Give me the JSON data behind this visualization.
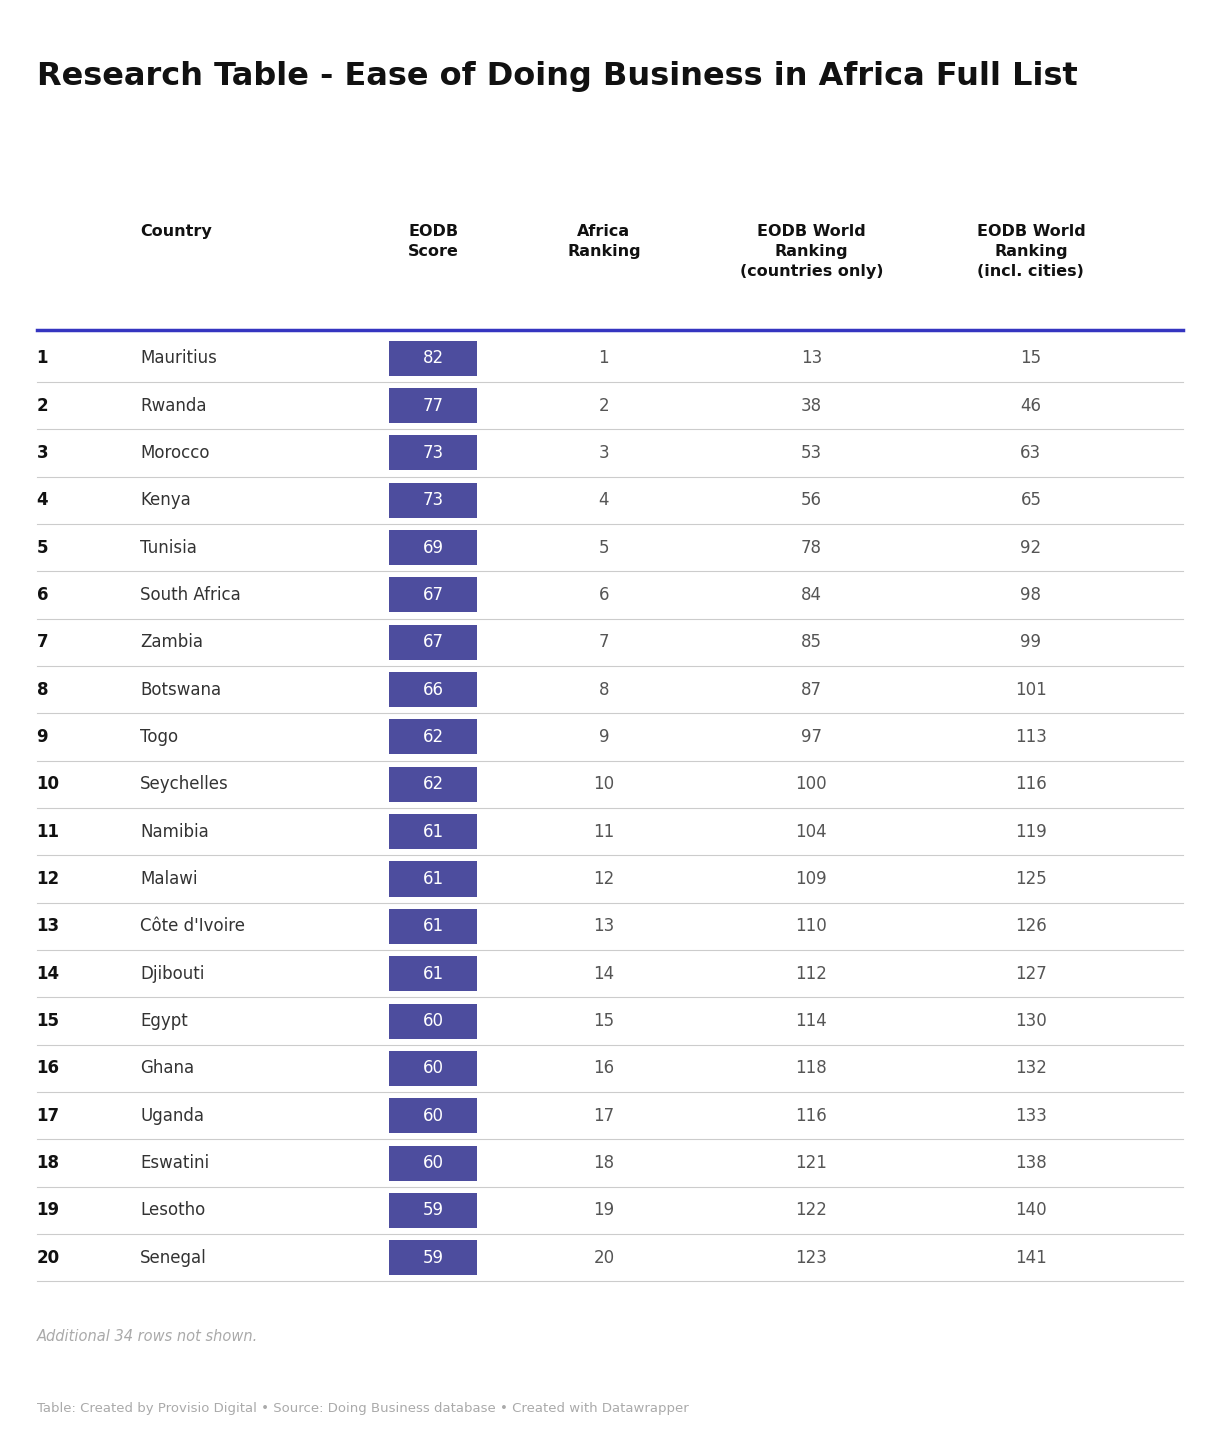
{
  "title": "Research Table - Ease of Doing Business in Africa Full List",
  "rows": [
    [
      "1",
      "Mauritius",
      "82",
      "1",
      "13",
      "15"
    ],
    [
      "2",
      "Rwanda",
      "77",
      "2",
      "38",
      "46"
    ],
    [
      "3",
      "Morocco",
      "73",
      "3",
      "53",
      "63"
    ],
    [
      "4",
      "Kenya",
      "73",
      "4",
      "56",
      "65"
    ],
    [
      "5",
      "Tunisia",
      "69",
      "5",
      "78",
      "92"
    ],
    [
      "6",
      "South Africa",
      "67",
      "6",
      "84",
      "98"
    ],
    [
      "7",
      "Zambia",
      "67",
      "7",
      "85",
      "99"
    ],
    [
      "8",
      "Botswana",
      "66",
      "8",
      "87",
      "101"
    ],
    [
      "9",
      "Togo",
      "62",
      "9",
      "97",
      "113"
    ],
    [
      "10",
      "Seychelles",
      "62",
      "10",
      "100",
      "116"
    ],
    [
      "11",
      "Namibia",
      "61",
      "11",
      "104",
      "119"
    ],
    [
      "12",
      "Malawi",
      "61",
      "12",
      "109",
      "125"
    ],
    [
      "13",
      "Côte d'Ivoire",
      "61",
      "13",
      "110",
      "126"
    ],
    [
      "14",
      "Djibouti",
      "61",
      "14",
      "112",
      "127"
    ],
    [
      "15",
      "Egypt",
      "60",
      "15",
      "114",
      "130"
    ],
    [
      "16",
      "Ghana",
      "60",
      "16",
      "118",
      "132"
    ],
    [
      "17",
      "Uganda",
      "60",
      "17",
      "116",
      "133"
    ],
    [
      "18",
      "Eswatini",
      "60",
      "18",
      "121",
      "138"
    ],
    [
      "19",
      "Lesotho",
      "59",
      "19",
      "122",
      "140"
    ],
    [
      "20",
      "Senegal",
      "59",
      "20",
      "123",
      "141"
    ]
  ],
  "footer_note": "Additional 34 rows not shown.",
  "footer_source": "Table: Created by Provisio Digital • Source: Doing Business database • Created with Datawrapper",
  "bg_color": "#ffffff",
  "title_color": "#111111",
  "header_color": "#111111",
  "rank_color": "#111111",
  "country_color": "#333333",
  "value_color": "#555555",
  "score_bg_color": "#4d4d9e",
  "score_text_color": "#ffffff",
  "divider_color": "#cccccc",
  "top_divider_color": "#3535c0",
  "footer_note_color": "#aaaaaa",
  "footer_source_color": "#aaaaaa",
  "title_fontsize": 23,
  "header_fontsize": 11.5,
  "row_fontsize": 12,
  "footer_fontsize": 10.5
}
